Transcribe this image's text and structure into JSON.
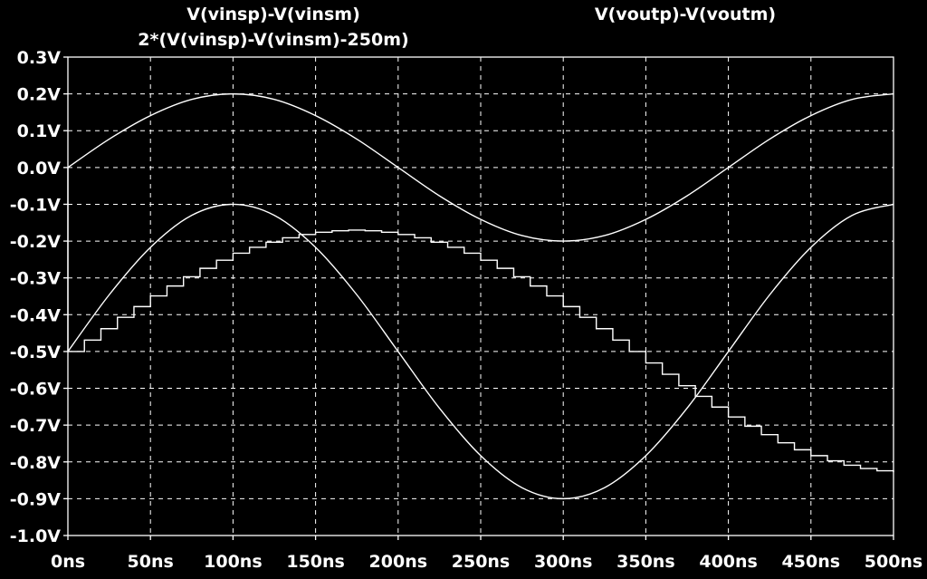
{
  "chart_data": {
    "type": "line",
    "x_tick_labels": [
      "0ns",
      "50ns",
      "100ns",
      "150ns",
      "200ns",
      "250ns",
      "300ns",
      "350ns",
      "400ns",
      "450ns",
      "500ns"
    ],
    "y_tick_labels": [
      "0.3V",
      "0.2V",
      "0.1V",
      "0.0V",
      "-0.1V",
      "-0.2V",
      "-0.3V",
      "-0.4V",
      "-0.5V",
      "-0.6V",
      "-0.7V",
      "-0.8V",
      "-0.9V",
      "-1.0V"
    ],
    "xlim": [
      0,
      500
    ],
    "ylim": [
      -1.0,
      0.3
    ],
    "x_unit": "ns",
    "y_unit": "V",
    "grid": true,
    "legend_position": "top",
    "series": [
      {
        "name": "V(vinsp)-V(vinsm)",
        "x": [
          0,
          25,
          50,
          75,
          100,
          125,
          150,
          175,
          200,
          225,
          250,
          275,
          300,
          325,
          350,
          375,
          400,
          425,
          450,
          475,
          500
        ],
        "values": [
          0.0,
          0.077,
          0.141,
          0.185,
          0.2,
          0.185,
          0.141,
          0.077,
          0.0,
          -0.077,
          -0.141,
          -0.185,
          -0.2,
          -0.185,
          -0.141,
          -0.077,
          0.0,
          0.077,
          0.141,
          0.185,
          0.2
        ]
      },
      {
        "name": "2*(V(vinsp)-V(vinsm)-250m)",
        "x": [
          0,
          25,
          50,
          75,
          100,
          125,
          150,
          175,
          200,
          225,
          250,
          275,
          300,
          325,
          350,
          375,
          400,
          425,
          450,
          475,
          500
        ],
        "values": [
          -0.5,
          -0.346,
          -0.217,
          -0.13,
          -0.1,
          -0.13,
          -0.217,
          -0.346,
          -0.5,
          -0.654,
          -0.783,
          -0.87,
          -0.9,
          -0.87,
          -0.783,
          -0.654,
          -0.5,
          -0.346,
          -0.217,
          -0.13,
          -0.1
        ]
      },
      {
        "name": "V(voutp)-V(voutm)",
        "step": "post",
        "x": [
          0,
          10,
          20,
          30,
          40,
          50,
          60,
          70,
          80,
          90,
          100,
          110,
          120,
          130,
          140,
          150,
          160,
          170,
          180,
          190,
          200,
          210,
          220,
          230,
          240,
          250,
          260,
          270,
          280,
          290,
          300,
          310,
          320,
          330,
          340,
          350,
          360,
          370,
          380,
          390,
          400,
          410,
          420,
          430,
          440,
          450,
          460,
          470,
          480,
          490,
          500
        ],
        "values": [
          -0.5,
          -0.469,
          -0.438,
          -0.407,
          -0.378,
          -0.349,
          -0.322,
          -0.297,
          -0.274,
          -0.252,
          -0.233,
          -0.217,
          -0.203,
          -0.191,
          -0.182,
          -0.176,
          -0.172,
          -0.17,
          -0.172,
          -0.176,
          -0.182,
          -0.191,
          -0.203,
          -0.217,
          -0.233,
          -0.252,
          -0.274,
          -0.297,
          -0.322,
          -0.349,
          -0.378,
          -0.407,
          -0.438,
          -0.469,
          -0.5,
          -0.531,
          -0.562,
          -0.593,
          -0.622,
          -0.651,
          -0.678,
          -0.703,
          -0.726,
          -0.748,
          -0.767,
          -0.783,
          -0.797,
          -0.809,
          -0.818,
          -0.824,
          -0.828
        ]
      }
    ]
  }
}
